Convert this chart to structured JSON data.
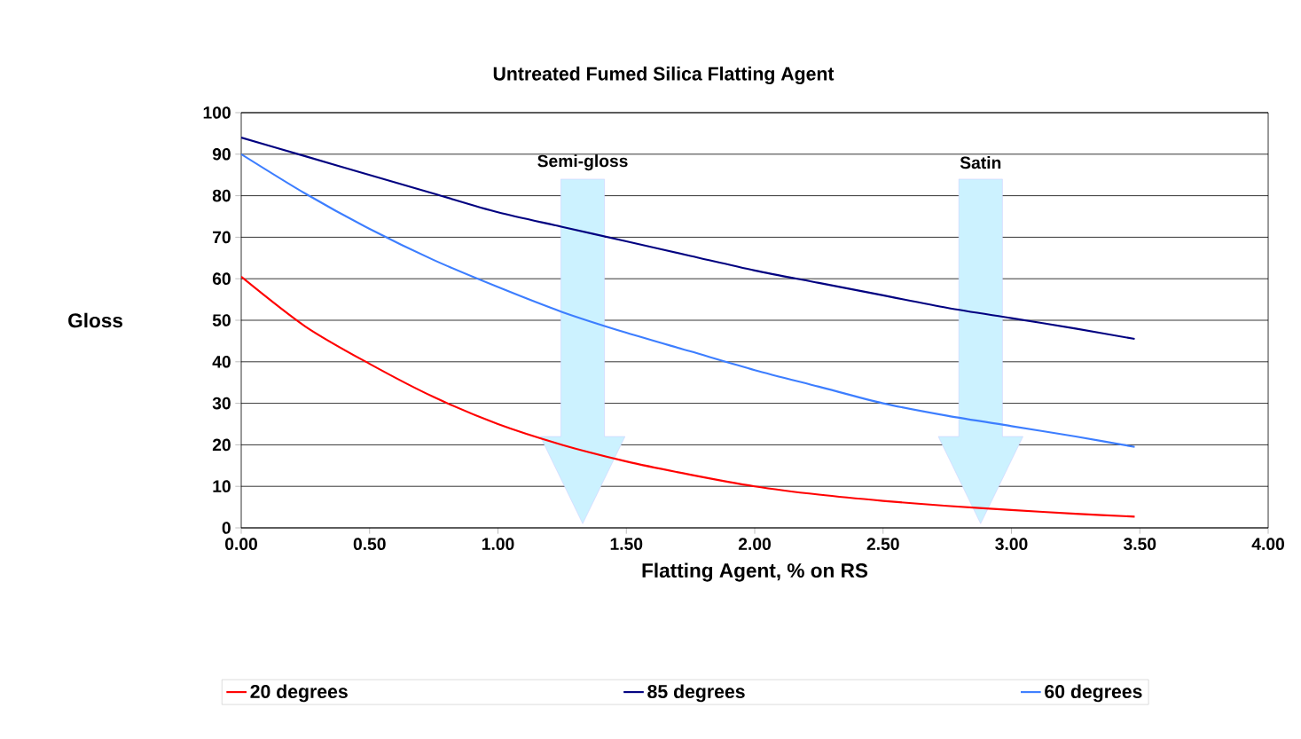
{
  "chart_data": {
    "type": "line",
    "title": "Untreated Fumed Silica Flatting Agent",
    "xlabel": "Flatting Agent, %  on RS",
    "ylabel": "Gloss",
    "x": [
      0,
      0.25,
      0.5,
      0.75,
      1.0,
      1.25,
      1.5,
      1.75,
      2.0,
      2.25,
      2.5,
      2.75,
      3.0,
      3.25,
      3.48
    ],
    "series": [
      {
        "name": "20 degrees",
        "color": "#ff0000",
        "values": [
          60.5,
          48.5,
          39.5,
          31.5,
          25,
          20,
          16,
          12.8,
          10,
          8,
          6.5,
          5.3,
          4.3,
          3.4,
          2.7
        ]
      },
      {
        "name": "85 degrees",
        "color": "#000080",
        "values": [
          94,
          89.5,
          85,
          80.5,
          76,
          72.5,
          69,
          65.5,
          62,
          59,
          56,
          53,
          50.5,
          48,
          45.5
        ]
      },
      {
        "name": "60 degrees",
        "color": "#3d7eff",
        "values": [
          90,
          80.5,
          72,
          64.5,
          58,
          52,
          47,
          42.5,
          38,
          34,
          30,
          27,
          24.5,
          22,
          19.5
        ]
      }
    ],
    "xlim": [
      0,
      4
    ],
    "ylim": [
      0,
      100
    ],
    "xticks": [
      {
        "value": 0,
        "label": "0.00"
      },
      {
        "value": 0.5,
        "label": "0.50"
      },
      {
        "value": 1,
        "label": "1.00"
      },
      {
        "value": 1.5,
        "label": "1.50"
      },
      {
        "value": 2,
        "label": "2.00"
      },
      {
        "value": 2.5,
        "label": "2.50"
      },
      {
        "value": 3,
        "label": "3.00"
      },
      {
        "value": 3.5,
        "label": "3.50"
      },
      {
        "value": 4,
        "label": "4.00"
      }
    ],
    "yticks": [
      0,
      10,
      20,
      30,
      40,
      50,
      60,
      70,
      80,
      90,
      100
    ],
    "grid": "y",
    "legend": "bottom",
    "marker": "none",
    "line_style": "solid",
    "annotations": [
      "Semi-gloss",
      "Satin"
    ]
  }
}
